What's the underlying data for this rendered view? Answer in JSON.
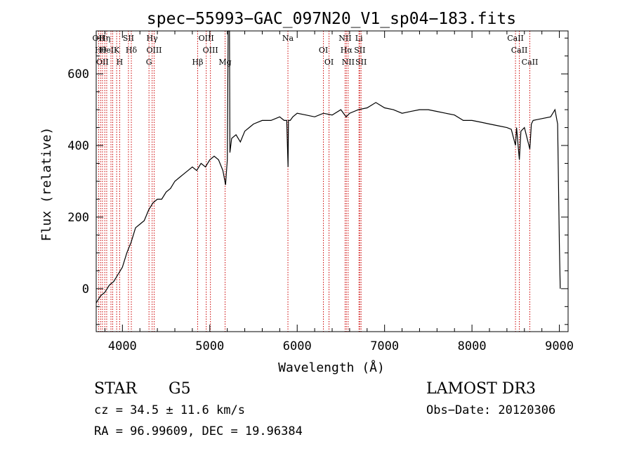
{
  "chart_data": {
    "type": "line",
    "title": "spec−55993−GAC_097N20_V1_sp04−183.fits",
    "xlabel": "Wavelength (Å)",
    "ylabel": "Flux (relative)",
    "xlim": [
      3700,
      9100
    ],
    "ylim": [
      -120,
      720
    ],
    "xticks": [
      4000,
      5000,
      6000,
      7000,
      8000,
      9000
    ],
    "xtick_labels": [
      "4000",
      "5000",
      "6000",
      "7000",
      "8000",
      "9000"
    ],
    "yticks": [
      0,
      200,
      400,
      600
    ],
    "ytick_labels": [
      "0",
      "200",
      "400",
      "600"
    ],
    "grid": false,
    "series": [
      {
        "x": [
          3700,
          3750,
          3800,
          3850,
          3900,
          3950,
          4000,
          4050,
          4100,
          4150,
          4200,
          4250,
          4300,
          4350,
          4400,
          4450,
          4500,
          4550,
          4600,
          4650,
          4700,
          4750,
          4800,
          4850,
          4900,
          4950,
          5000,
          5050,
          5100,
          5150,
          5180,
          5200,
          5210,
          5215,
          5220,
          5225,
          5230,
          5250,
          5300,
          5350,
          5400,
          5450,
          5500,
          5600,
          5700,
          5800,
          5850,
          5880,
          5895,
          5900,
          5920,
          5950,
          6000,
          6100,
          6200,
          6300,
          6400,
          6500,
          6560,
          6600,
          6700,
          6800,
          6900,
          7000,
          7100,
          7200,
          7300,
          7400,
          7500,
          7600,
          7700,
          7800,
          7900,
          8000,
          8100,
          8200,
          8300,
          8400,
          8450,
          8498,
          8510,
          8542,
          8560,
          8600,
          8662,
          8680,
          8700,
          8800,
          8900,
          8950,
          8980,
          9000,
          9010
        ],
        "y": [
          -40,
          -20,
          -10,
          10,
          20,
          40,
          60,
          100,
          130,
          170,
          180,
          190,
          220,
          240,
          250,
          250,
          270,
          280,
          300,
          310,
          320,
          330,
          340,
          330,
          350,
          340,
          360,
          370,
          360,
          330,
          290,
          360,
          720,
          720,
          720,
          720,
          380,
          420,
          430,
          410,
          440,
          450,
          460,
          470,
          470,
          480,
          470,
          470,
          340,
          470,
          470,
          480,
          490,
          485,
          480,
          490,
          485,
          500,
          480,
          490,
          500,
          505,
          520,
          505,
          500,
          490,
          495,
          500,
          500,
          495,
          490,
          485,
          470,
          470,
          465,
          460,
          455,
          450,
          445,
          400,
          450,
          360,
          440,
          450,
          390,
          460,
          470,
          475,
          480,
          500,
          460,
          120,
          0
        ]
      }
    ],
    "lines": [
      {
        "x": 3727,
        "labels": [
          "OII"
        ]
      },
      {
        "x": 3750,
        "labels": [
          "Hθ"
        ]
      },
      {
        "x": 3771,
        "labels": [
          "OII"
        ]
      },
      {
        "x": 3798,
        "labels": [
          "Hη"
        ]
      },
      {
        "x": 3820,
        "labels": [
          "HeI"
        ]
      },
      {
        "x": 3869,
        "labels": []
      },
      {
        "x": 3889,
        "labels": []
      },
      {
        "x": 3934,
        "labels": [
          "K"
        ]
      },
      {
        "x": 3969,
        "labels": [
          "H"
        ]
      },
      {
        "x": 4069,
        "labels": [
          "SII"
        ]
      },
      {
        "x": 4102,
        "labels": [
          "Hδ"
        ]
      },
      {
        "x": 4304,
        "labels": [
          "G"
        ]
      },
      {
        "x": 4340,
        "labels": [
          "Hγ"
        ]
      },
      {
        "x": 4363,
        "labels": [
          "OIII"
        ]
      },
      {
        "x": 4861,
        "labels": [
          "Hβ"
        ]
      },
      {
        "x": 4959,
        "labels": [
          "OIII"
        ]
      },
      {
        "x": 5007,
        "labels": [
          "OIII"
        ]
      },
      {
        "x": 5175,
        "labels": [
          "Mg"
        ]
      },
      {
        "x": 5894,
        "labels": [
          "Na"
        ]
      },
      {
        "x": 6300,
        "labels": [
          "OI"
        ]
      },
      {
        "x": 6364,
        "labels": [
          "OI"
        ]
      },
      {
        "x": 6548,
        "labels": [
          "NII"
        ]
      },
      {
        "x": 6563,
        "labels": [
          "Hα"
        ]
      },
      {
        "x": 6583,
        "labels": [
          "NII"
        ]
      },
      {
        "x": 6707,
        "labels": [
          "Li"
        ]
      },
      {
        "x": 6716,
        "labels": [
          "SII"
        ]
      },
      {
        "x": 6731,
        "labels": [
          "SII"
        ]
      },
      {
        "x": 8498,
        "labels": [
          "CaII"
        ]
      },
      {
        "x": 8542,
        "labels": [
          "CaII"
        ]
      },
      {
        "x": 8662,
        "labels": [
          "CaII"
        ]
      }
    ],
    "annotations": {
      "object_class": "STAR",
      "subclass": "G5",
      "survey": "LAMOST DR3",
      "cz": "cz = 34.5 ± 11.6 km/s",
      "obs_date": "Obs−Date: 20120306",
      "coords": "RA =  96.99609, DEC =  19.96384"
    },
    "colors": {
      "spectrum": "#000000",
      "line_marker": "#cc0000",
      "axes": "#000000"
    }
  }
}
